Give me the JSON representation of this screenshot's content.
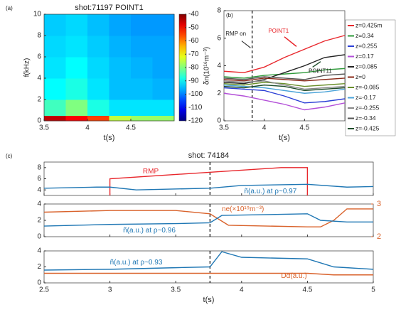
{
  "chart_data": [
    {
      "type": "heatmap",
      "panel_label": "(a)",
      "title": "shot:71197  POINT1",
      "ylabel": "f(kHz)",
      "xlabel": "t(s)",
      "xbins": [
        3.5,
        3.75,
        4,
        4.25,
        4.5,
        4.75,
        5
      ],
      "ybins": [
        0,
        0.5,
        2,
        4,
        6,
        8,
        10
      ],
      "values": [
        [
          -45,
          -50,
          -55,
          -75,
          -78,
          -78
        ],
        [
          -85,
          -80,
          -88,
          -92,
          -92,
          -92
        ],
        [
          -90,
          -88,
          -92,
          -95,
          -95,
          -96
        ],
        [
          -92,
          -90,
          -93,
          -95,
          -96,
          -97
        ],
        [
          -93,
          -92,
          -94,
          -96,
          -97,
          -97
        ],
        [
          -94,
          -93,
          -95,
          -97,
          -98,
          -98
        ]
      ],
      "clim": [
        -120,
        -40
      ],
      "xlim": [
        3.5,
        5
      ],
      "ylim": [
        0,
        10
      ],
      "xticks": [
        3.5,
        4,
        4.5
      ],
      "yticks": [
        0,
        2,
        4,
        6,
        8,
        10
      ],
      "cticks": [
        -40,
        -50,
        -60,
        -70,
        -80,
        -90,
        -100,
        -110,
        -120
      ]
    },
    {
      "type": "line",
      "panel_label": "(b)",
      "ylabel": "δn(10¹⁶m⁻³)",
      "xlabel": "t(s)",
      "legend": "right",
      "annotations": [
        "RMP on",
        "POINT1",
        "POINT11"
      ],
      "vline": 3.85,
      "xlim": [
        3.5,
        5
      ],
      "ylim": [
        0,
        8
      ],
      "xticks": [
        3.5,
        4,
        4.5
      ],
      "yticks": [
        0,
        2,
        4,
        6,
        8
      ],
      "series": [
        {
          "name": "z=0.425m",
          "color": "#e8262b",
          "x": [
            3.5,
            3.75,
            4,
            4.25,
            4.5,
            4.75,
            5
          ],
          "values": [
            3.6,
            3.5,
            3.9,
            4.6,
            5.2,
            5.8,
            6.2
          ]
        },
        {
          "name": "z=0.34",
          "color": "#2e9a3a",
          "x": [
            3.5,
            3.75,
            4,
            4.25,
            4.5,
            4.75,
            5
          ],
          "values": [
            3.2,
            3.1,
            3.3,
            3.4,
            3.5,
            3.7,
            3.8
          ]
        },
        {
          "name": "z=0.255",
          "color": "#2b3fd6",
          "x": [
            3.5,
            3.75,
            4,
            4.25,
            4.5,
            4.75,
            5
          ],
          "values": [
            2.4,
            2.3,
            2.2,
            1.8,
            1.3,
            1.4,
            1.6
          ]
        },
        {
          "name": "z=0.17",
          "color": "#b34fd8",
          "x": [
            3.5,
            3.75,
            4,
            4.25,
            4.5,
            4.75,
            5
          ],
          "values": [
            2.0,
            1.8,
            1.5,
            1.2,
            0.8,
            1.0,
            1.3
          ]
        },
        {
          "name": "z=0.085",
          "color": "#222222",
          "x": [
            3.5,
            3.75,
            4,
            4.25,
            4.5,
            4.75,
            5
          ],
          "values": [
            2.8,
            2.7,
            3.0,
            3.5,
            4.0,
            4.6,
            4.8
          ]
        },
        {
          "name": "z=0",
          "color": "#8b2a1a",
          "x": [
            3.5,
            3.75,
            4,
            4.25,
            4.5,
            4.75,
            5
          ],
          "values": [
            3.0,
            2.9,
            3.1,
            3.0,
            2.9,
            3.0,
            3.1
          ]
        },
        {
          "name": "z=-0.085",
          "color": "#6a8f2a",
          "x": [
            3.5,
            3.75,
            4,
            4.25,
            4.5,
            4.75,
            5
          ],
          "values": [
            2.7,
            2.6,
            2.8,
            2.7,
            2.5,
            2.6,
            2.7
          ]
        },
        {
          "name": "z=-0.17",
          "color": "#4aa3d8",
          "x": [
            3.5,
            3.75,
            4,
            4.25,
            4.5,
            4.75,
            5
          ],
          "values": [
            2.6,
            2.5,
            2.4,
            2.2,
            2.0,
            2.1,
            2.3
          ]
        },
        {
          "name": "z=-0.255",
          "color": "#888888",
          "x": [
            3.5,
            3.75,
            4,
            4.25,
            4.5,
            4.75,
            5
          ],
          "values": [
            2.9,
            2.8,
            2.9,
            2.6,
            2.3,
            2.4,
            2.5
          ]
        },
        {
          "name": "z=-0.34",
          "color": "#555555",
          "x": [
            3.5,
            3.75,
            4,
            4.25,
            4.5,
            4.75,
            5
          ],
          "values": [
            3.1,
            3.0,
            3.2,
            3.1,
            3.0,
            3.3,
            3.4
          ]
        },
        {
          "name": "z=-0.425",
          "color": "#1f4d2b",
          "x": [
            3.5,
            3.75,
            4,
            4.25,
            4.5,
            4.75,
            5
          ],
          "values": [
            2.5,
            2.4,
            2.6,
            2.5,
            2.2,
            2.3,
            2.4
          ]
        }
      ]
    },
    {
      "type": "line",
      "panel_label": "(c)",
      "title": "shot: 74184",
      "vline": 3.76,
      "xticklabels": false,
      "xlim": [
        2.5,
        5
      ],
      "ylim": [
        3,
        9
      ],
      "xticks": [
        2.5,
        3,
        3.5,
        4,
        4.5,
        5
      ],
      "yticks": [
        4,
        6,
        8
      ],
      "series": [
        {
          "name": "RMP",
          "color": "#e8262b",
          "x": [
            3,
            3,
            4.3,
            4.5,
            4.5
          ],
          "values": [
            3,
            6,
            8,
            8,
            3
          ]
        },
        {
          "name": "ñ(a.u.)    at  ρ~0.97",
          "color": "#1f77b4",
          "x": [
            2.5,
            2.9,
            3.0,
            3.2,
            3.76,
            4,
            4.5,
            4.8,
            5
          ],
          "values": [
            4.3,
            4.5,
            4.5,
            4.0,
            4.3,
            4.8,
            5.0,
            4.5,
            4.6
          ]
        }
      ]
    },
    {
      "type": "line",
      "vline": 3.76,
      "xticklabels": false,
      "xlim": [
        2.5,
        5
      ],
      "ylim": [
        0,
        4
      ],
      "xticks": [
        2.5,
        3,
        3.5,
        4,
        4.5,
        5
      ],
      "yticks": [
        0,
        2,
        4
      ],
      "y2lim": [
        2,
        3
      ],
      "y2ticks": [
        2,
        3
      ],
      "series": [
        {
          "name": "ne(×10¹⁹m⁻³)",
          "color": "#d9622b",
          "axis": "y2",
          "x": [
            2.5,
            3,
            3.5,
            3.76,
            3.9,
            4.5,
            4.6,
            4.7,
            4.8,
            5
          ],
          "values": [
            2.75,
            2.8,
            2.8,
            2.7,
            2.35,
            2.3,
            2.3,
            2.5,
            2.85,
            2.85
          ]
        },
        {
          "name": "ñ(a.u.)    at  ρ~0.96",
          "color": "#1f77b4",
          "x": [
            2.5,
            3,
            3.5,
            3.76,
            3.85,
            4.5,
            4.6,
            4.8,
            5
          ],
          "values": [
            1.3,
            1.5,
            1.6,
            1.7,
            2.6,
            2.8,
            2.0,
            1.8,
            1.8
          ]
        }
      ]
    },
    {
      "type": "line",
      "vline": 3.76,
      "xlabel": "t(s)",
      "xlim": [
        2.5,
        5
      ],
      "ylim": [
        0,
        4
      ],
      "xticks": [
        2.5,
        3,
        3.5,
        4,
        4.5,
        5
      ],
      "yticks": [
        0,
        2,
        4
      ],
      "series": [
        {
          "name": "ñ(a.u.)    at  ρ~0.93",
          "color": "#1f77b4",
          "x": [
            2.5,
            3,
            3.5,
            3.76,
            3.85,
            4,
            4.5,
            4.7,
            4.8,
            5
          ],
          "values": [
            1.6,
            1.7,
            1.9,
            2.0,
            3.9,
            3.2,
            3.0,
            2.0,
            1.9,
            1.7
          ]
        },
        {
          "name": "Dα(a.u.)",
          "color": "#d9622b",
          "x": [
            2.5,
            3,
            3.5,
            4,
            4.5,
            4.7,
            4.8,
            5
          ],
          "values": [
            1.2,
            1.2,
            1.2,
            1.2,
            1.2,
            1.0,
            1.0,
            1.0
          ]
        }
      ]
    }
  ]
}
